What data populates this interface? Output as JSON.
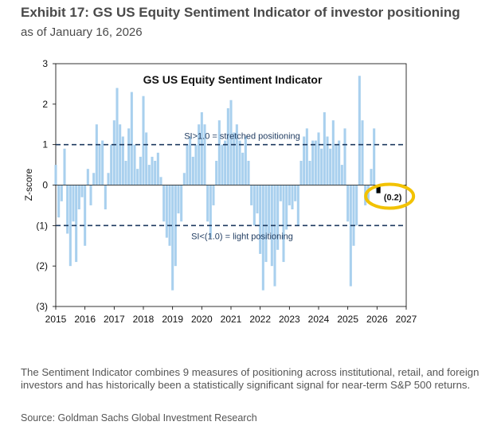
{
  "header": {
    "title": "Exhibit 17: GS US Equity Sentiment Indicator of investor positioning",
    "subtitle": "as of January 16, 2026"
  },
  "footer": {
    "note": "The Sentiment Indicator combines 9 measures of positioning across institutional, retail, and foreign investors and has historically been a statistically significant signal for near-term S&P 500 returns.",
    "source": "Source: Goldman Sachs Global Investment Research"
  },
  "colors": {
    "bars": "#a9d0ee",
    "latest_bar": "#000000",
    "threshold_line": "#1e3a5f",
    "highlight_circle": "#f2c200",
    "axis": "#000000"
  },
  "chart_data": {
    "type": "bar",
    "title": "GS US Equity  Sentiment Indicator",
    "xlabel": "",
    "ylabel": "Z-score",
    "xlim": [
      2015,
      2027
    ],
    "ylim": [
      -3,
      3
    ],
    "x_ticks": [
      "2015",
      "2016",
      "2017",
      "2018",
      "2019",
      "2020",
      "2021",
      "2022",
      "2023",
      "2024",
      "2025",
      "2026",
      "2027"
    ],
    "y_ticks": [
      {
        "value": 3,
        "label": "3"
      },
      {
        "value": 2,
        "label": "2"
      },
      {
        "value": 1,
        "label": "1"
      },
      {
        "value": 0,
        "label": "0"
      },
      {
        "value": -1,
        "label": "(1)"
      },
      {
        "value": -2,
        "label": "(2)"
      },
      {
        "value": -3,
        "label": "(3)"
      }
    ],
    "grid": false,
    "thresholds": [
      {
        "value": 1.0,
        "label": "SI>1.0 = stretched positioning",
        "style": "dashed"
      },
      {
        "value": -1.0,
        "label": "SI<(1.0) = light positioning",
        "style": "dashed"
      }
    ],
    "series": [
      {
        "frequency": "weekly, approx.",
        "x": [
          2015.0,
          2015.1,
          2015.2,
          2015.3,
          2015.4,
          2015.5,
          2015.6,
          2015.7,
          2015.8,
          2015.9,
          2016.0,
          2016.1,
          2016.2,
          2016.3,
          2016.4,
          2016.5,
          2016.6,
          2016.7,
          2016.8,
          2016.9,
          2017.0,
          2017.1,
          2017.2,
          2017.3,
          2017.4,
          2017.5,
          2017.6,
          2017.7,
          2017.8,
          2017.9,
          2018.0,
          2018.1,
          2018.2,
          2018.3,
          2018.4,
          2018.5,
          2018.6,
          2018.7,
          2018.8,
          2018.9,
          2019.0,
          2019.1,
          2019.2,
          2019.3,
          2019.4,
          2019.5,
          2019.6,
          2019.7,
          2019.8,
          2019.9,
          2020.0,
          2020.1,
          2020.2,
          2020.3,
          2020.4,
          2020.5,
          2020.6,
          2020.7,
          2020.8,
          2020.9,
          2021.0,
          2021.1,
          2021.2,
          2021.3,
          2021.4,
          2021.5,
          2021.6,
          2021.7,
          2021.8,
          2021.9,
          2022.0,
          2022.1,
          2022.2,
          2022.3,
          2022.4,
          2022.5,
          2022.6,
          2022.7,
          2022.8,
          2022.9,
          2023.0,
          2023.1,
          2023.2,
          2023.3,
          2023.4,
          2023.5,
          2023.6,
          2023.7,
          2023.8,
          2023.9,
          2024.0,
          2024.1,
          2024.2,
          2024.3,
          2024.4,
          2024.5,
          2024.6,
          2024.7,
          2024.8,
          2024.9,
          2025.0,
          2025.1,
          2025.2,
          2025.3,
          2025.4,
          2025.5,
          2025.6,
          2025.7,
          2025.8,
          2025.9,
          2026.0
        ],
        "values": [
          0.5,
          -0.8,
          -0.4,
          0.9,
          -1.2,
          -2.0,
          -0.9,
          -1.9,
          -0.6,
          -0.3,
          -1.5,
          0.4,
          -0.5,
          0.3,
          1.5,
          1.0,
          1.1,
          -0.6,
          0.3,
          1.0,
          1.6,
          2.4,
          1.5,
          1.2,
          0.6,
          1.4,
          2.3,
          1.0,
          0.4,
          0.7,
          2.2,
          1.3,
          0.5,
          0.7,
          0.6,
          0.8,
          0.2,
          -0.9,
          -1.3,
          -1.5,
          -2.6,
          -2.0,
          -0.7,
          -0.9,
          0.3,
          1.0,
          1.2,
          0.7,
          1.0,
          1.5,
          1.8,
          1.5,
          -0.9,
          -1.3,
          -0.5,
          0.6,
          1.6,
          1.0,
          1.1,
          1.9,
          2.1,
          1.3,
          1.5,
          1.1,
          0.8,
          1.2,
          0.6,
          -0.5,
          -1.0,
          -0.7,
          -1.7,
          -2.6,
          -1.9,
          -1.2,
          -2.0,
          -2.5,
          -1.6,
          -0.4,
          -1.9,
          -1.1,
          -0.5,
          -0.6,
          -0.4,
          -1.0,
          0.6,
          1.2,
          1.4,
          0.6,
          1.1,
          1.1,
          1.3,
          0.9,
          1.8,
          1.2,
          0.9,
          1.6,
          1.0,
          1.1,
          0.5,
          1.4,
          -0.9,
          -2.5,
          -1.5,
          -1.0,
          2.7,
          1.6,
          -0.5,
          -0.4,
          0.4,
          1.4,
          -0.2
        ]
      }
    ],
    "latest": {
      "x": 2026.05,
      "value": -0.2,
      "label": "(0.2)"
    }
  }
}
